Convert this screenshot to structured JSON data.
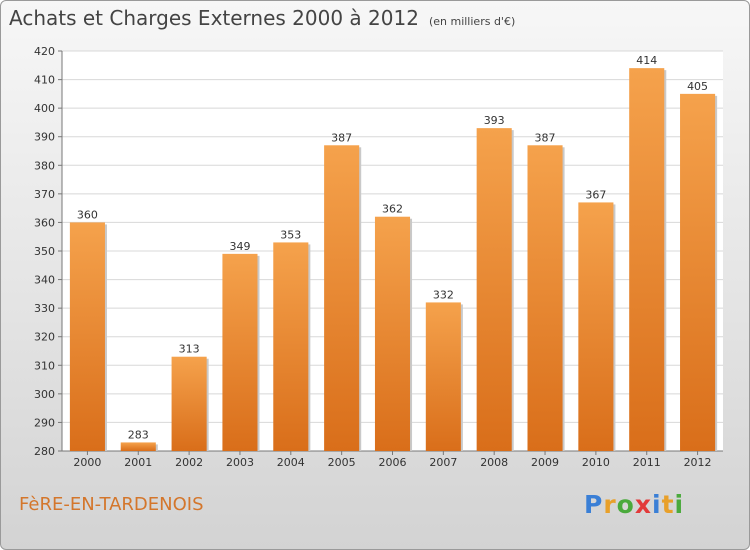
{
  "title": "Achats et Charges Externes 2000 à 2012",
  "unit_note": "(en milliers d'€)",
  "place": "FèRE-EN-TARDENOIS",
  "logo": {
    "text": "Proxiti",
    "letter_colors": [
      "#3a7fd6",
      "#e8a02a",
      "#4aaa3c",
      "#e23a3a",
      "#3a7fd6",
      "#e8a02a",
      "#4aaa3c"
    ]
  },
  "colors": {
    "bar_light": "#f5a24c",
    "bar_dark": "#d96e1a",
    "place_text": "#d4762b"
  },
  "chart_data": {
    "type": "bar",
    "title": "Achats et Charges Externes 2000 à 2012",
    "subtitle": "(en milliers d'€)",
    "categories": [
      "2000",
      "2001",
      "2002",
      "2003",
      "2004",
      "2005",
      "2006",
      "2007",
      "2008",
      "2009",
      "2010",
      "2011",
      "2012"
    ],
    "values": [
      360,
      283,
      313,
      349,
      353,
      387,
      362,
      332,
      393,
      387,
      367,
      414,
      405
    ],
    "ylim": [
      280,
      420
    ],
    "yticks": [
      280,
      290,
      300,
      310,
      320,
      330,
      340,
      350,
      360,
      370,
      380,
      390,
      400,
      410,
      420
    ],
    "grid": true,
    "xlabel": "",
    "ylabel": ""
  }
}
